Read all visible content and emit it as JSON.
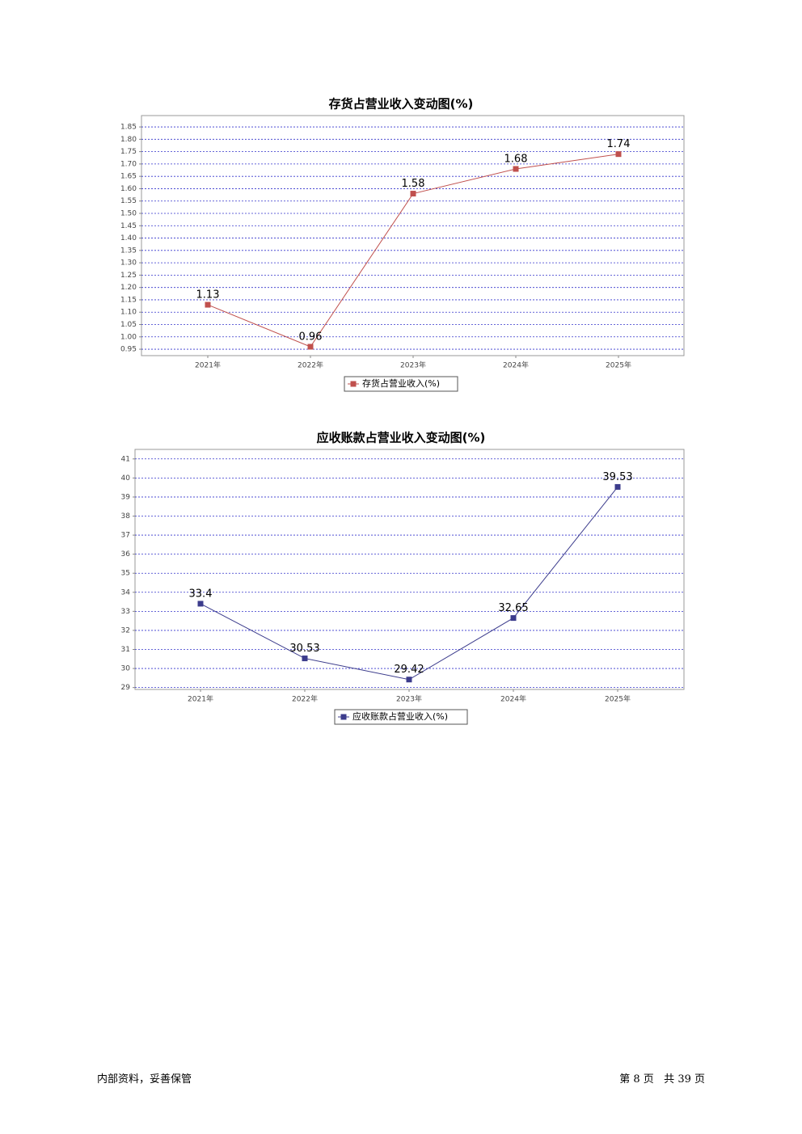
{
  "chart_data": [
    {
      "type": "line",
      "title": "存货占营业收入变动图(%)",
      "categories": [
        "2021年",
        "2022年",
        "2023年",
        "2024年",
        "2025年"
      ],
      "series": [
        {
          "name": "存货占营业收入(%)",
          "color": "#c0504d",
          "values": [
            1.13,
            0.96,
            1.58,
            1.68,
            1.74
          ]
        }
      ],
      "ylim": [
        0.924,
        1.896
      ],
      "yticks": [
        0.95,
        {
          "value": 1,
          "label": "1.00"
        },
        1.05,
        {
          "value": 1.1,
          "label": "1.10"
        },
        1.15,
        {
          "value": 1.2,
          "label": "1.20"
        },
        1.25,
        {
          "value": 1.3,
          "label": "1.30"
        },
        1.35,
        {
          "value": 1.4,
          "label": "1.40"
        },
        1.45,
        {
          "value": 1.5,
          "label": "1.50"
        },
        1.55,
        {
          "value": 1.6,
          "label": "1.60"
        },
        1.65,
        {
          "value": 1.7,
          "label": "1.70"
        },
        1.75,
        {
          "value": 1.8,
          "label": "1.80"
        },
        1.85
      ],
      "grid": true
    },
    {
      "type": "line",
      "title": "应收账款占营业收入变动图(%)",
      "categories": [
        "2021年",
        "2022年",
        "2023年",
        "2024年",
        "2025年"
      ],
      "series": [
        {
          "name": "应收账款占营业收入(%)",
          "color": "#3c3c8c",
          "values": [
            33.4,
            30.53,
            29.42,
            32.65,
            39.53
          ]
        }
      ],
      "ylim": [
        28.9,
        41.5
      ],
      "yticks": [
        29,
        30,
        31,
        32,
        33,
        34,
        35,
        36,
        37,
        38,
        39,
        40,
        41
      ],
      "grid": true
    }
  ],
  "footer": {
    "left": "内部资料，妥善保管",
    "right": "第 8 页   共 39 页"
  }
}
